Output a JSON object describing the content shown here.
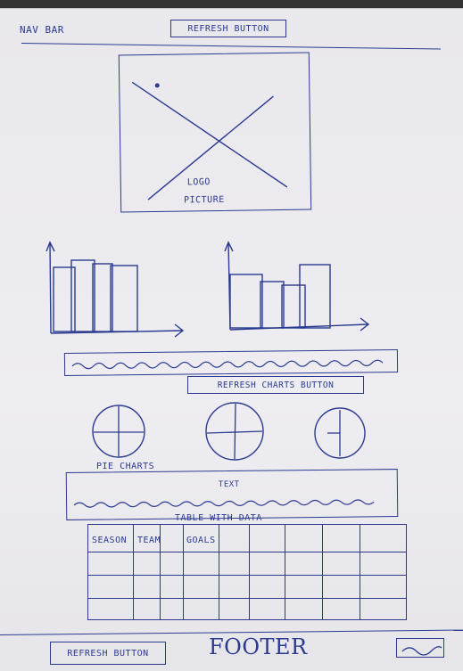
{
  "navbar": {
    "label": "NAV BAR",
    "refresh_button": "REFRESH BUTTON"
  },
  "logo": {
    "label_line1": "LOGO",
    "label_line2": "PICTURE"
  },
  "charts": {
    "refresh_button": "REFRESH CHARTS BUTTON",
    "pie_label": "PIE CHARTS"
  },
  "text_section": {
    "label": "TEXT"
  },
  "table": {
    "title": "TABLE WITH DATA",
    "columns": [
      "SEASON",
      "TEAM",
      "GOALS",
      "",
      "",
      "",
      "",
      ""
    ]
  },
  "footer": {
    "refresh_button": "REFRESH BUTTON",
    "label": "FOOTER"
  },
  "colors": {
    "ink": "#2b3a8f",
    "paper": "#eeedf1"
  }
}
